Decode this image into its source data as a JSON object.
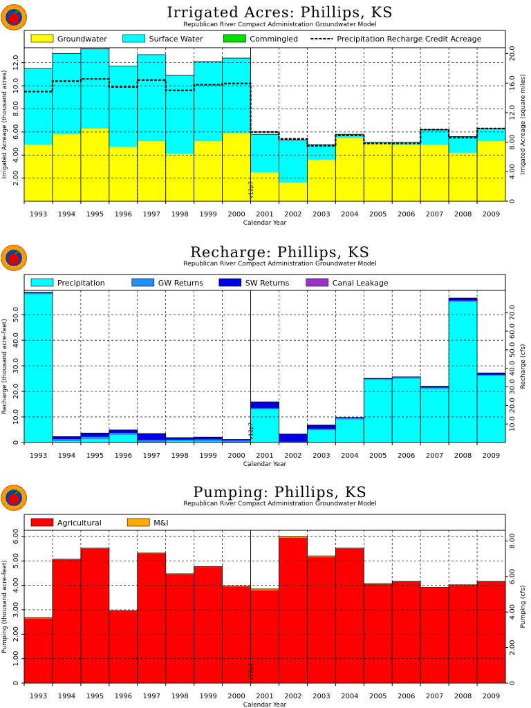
{
  "chart_data": [
    {
      "type": "bar",
      "title": "Irrigated Acres: Phillips, KS",
      "subtitle": "Republican River Compact Administration Groundwater Model",
      "xlabel": "Calendar Year",
      "ylabel": "Irrigated Acreage (thousand acres)",
      "ylabel2": "Irrigated Acreage (square miles)",
      "categories": [
        "1993",
        "1994",
        "1995",
        "1996",
        "1997",
        "1998",
        "1999",
        "2000",
        "2001",
        "2002",
        "2003",
        "2004",
        "2005",
        "2006",
        "2007",
        "2008",
        "2009"
      ],
      "stacked": true,
      "ylim": [
        0,
        13.3
      ],
      "yticks": [
        "2.00",
        "4.00",
        "6.00",
        "8.00",
        "10.0",
        "12.0"
      ],
      "y2lim": [
        0,
        20.8
      ],
      "y2ticks": [
        "0",
        "4.00",
        "8.00",
        "12.0",
        "16.0",
        "20.0"
      ],
      "series": [
        {
          "name": "Groundwater",
          "color": "#ffff00",
          "values": [
            4.9,
            5.8,
            6.3,
            4.7,
            5.2,
            4.1,
            5.2,
            5.9,
            2.5,
            1.6,
            3.6,
            5.5,
            5.0,
            4.9,
            4.9,
            4.2,
            5.2
          ]
        },
        {
          "name": "Surface Water",
          "color": "#00ffff",
          "values": [
            6.6,
            7.0,
            6.9,
            7.0,
            7.5,
            6.8,
            6.9,
            6.5,
            3.3,
            3.7,
            1.3,
            0.3,
            0.1,
            0.2,
            1.3,
            1.4,
            1.1
          ]
        },
        {
          "name": "Commingled",
          "color": "#00dd00",
          "values": [
            0,
            0,
            0,
            0,
            0,
            0,
            0,
            0,
            0,
            0,
            0,
            0,
            0,
            0,
            0,
            0,
            0
          ]
        }
      ],
      "line": {
        "name": "Precipitation Recharge Credit Acreage",
        "values": [
          9.5,
          10.4,
          10.6,
          9.9,
          10.5,
          9.6,
          10.1,
          10.2,
          6.0,
          5.4,
          4.8,
          5.7,
          5.0,
          5.0,
          6.2,
          5.5,
          6.3
        ]
      },
      "marker": {
        "label": "v12p7",
        "index": 8
      }
    },
    {
      "type": "bar",
      "title": "Recharge: Phillips, KS",
      "subtitle": "Republican River Compact Administration Groundwater Model",
      "xlabel": "Calendar Year",
      "ylabel": "Recharge (thousand acre-feet)",
      "ylabel2": "Recharge (cfs)",
      "categories": [
        "1993",
        "1994",
        "1995",
        "1996",
        "1997",
        "1998",
        "1999",
        "2000",
        "2001",
        "2002",
        "2003",
        "2004",
        "2005",
        "2006",
        "2007",
        "2008",
        "2009"
      ],
      "stacked": true,
      "ylim": [
        0,
        59.5
      ],
      "yticks": [
        "0",
        "10.0",
        "20.0",
        "30.0",
        "40.0",
        "50.0"
      ],
      "y2lim": [
        0,
        82
      ],
      "y2ticks": [
        "10.0",
        "20.0",
        "30.0",
        "40.0",
        "50.0",
        "60.0",
        "70.0"
      ],
      "series": [
        {
          "name": "Precipitation",
          "color": "#00ffff",
          "values": [
            58.0,
            0.5,
            1.3,
            3.0,
            0,
            0.5,
            0.4,
            0,
            13.0,
            0,
            4.8,
            9.0,
            24.5,
            25.0,
            21.0,
            55.0,
            26.0
          ]
        },
        {
          "name": "GW Returns",
          "color": "#1e90ff",
          "values": [
            0.5,
            0.8,
            0.9,
            0.7,
            0.9,
            0.6,
            0.8,
            0.8,
            0.4,
            0.3,
            0.5,
            0.6,
            0.5,
            0.5,
            0.5,
            0.5,
            0.5
          ]
        },
        {
          "name": "SW Returns",
          "color": "#0000dd",
          "values": [
            0.3,
            1.0,
            1.5,
            1.2,
            2.6,
            0.8,
            0.9,
            0.4,
            2.5,
            3.0,
            1.5,
            0.2,
            0.1,
            0.2,
            0.5,
            1.0,
            0.7
          ]
        },
        {
          "name": "Canal Leakage",
          "color": "#9932cc",
          "values": [
            0,
            0,
            0,
            0,
            0,
            0,
            0,
            0,
            0,
            0,
            0,
            0,
            0,
            0,
            0,
            0,
            0
          ]
        }
      ],
      "marker": {
        "label": "v12p7",
        "index": 8
      }
    },
    {
      "type": "bar",
      "title": "Pumping: Phillips, KS",
      "subtitle": "Republican River Compact Administration Groundwater Model",
      "xlabel": "Calendar Year",
      "ylabel": "Pumping (thousand acre-feet)",
      "ylabel2": "Pumping (cfs)",
      "categories": [
        "1993",
        "1994",
        "1995",
        "1996",
        "1997",
        "1998",
        "1999",
        "2000",
        "2001",
        "2002",
        "2003",
        "2004",
        "2005",
        "2006",
        "2007",
        "2008",
        "2009"
      ],
      "stacked": true,
      "ylim": [
        0,
        6.25
      ],
      "yticks": [
        "0",
        "1.00",
        "2.00",
        "3.00",
        "4.00",
        "5.00",
        "6.00"
      ],
      "y2lim": [
        0,
        8.6
      ],
      "y2ticks": [
        "0",
        "2.00",
        "4.00",
        "6.00",
        "8.00"
      ],
      "series": [
        {
          "name": "Agricultural",
          "color": "#ff0000",
          "values": [
            2.65,
            5.05,
            5.5,
            2.95,
            5.3,
            4.45,
            4.75,
            3.95,
            3.8,
            5.95,
            5.15,
            5.5,
            4.05,
            4.15,
            3.9,
            4.0,
            4.15
          ]
        },
        {
          "name": "M&I",
          "color": "#ffaa00",
          "values": [
            0.02,
            0.02,
            0.02,
            0.02,
            0.02,
            0.02,
            0.02,
            0.02,
            0.05,
            0.05,
            0.05,
            0.02,
            0.02,
            0.02,
            0.02,
            0.02,
            0.02
          ]
        }
      ],
      "marker": {
        "label": "v12p7",
        "index": 8
      }
    }
  ]
}
